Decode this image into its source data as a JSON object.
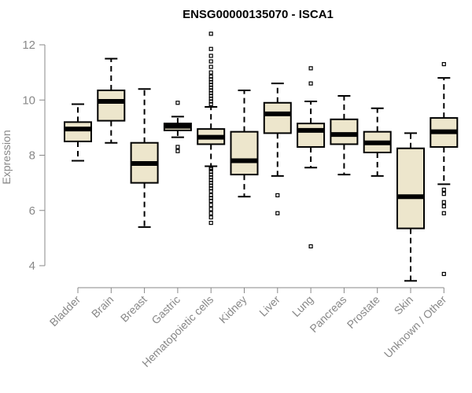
{
  "chart_data": {
    "type": "boxplot",
    "title": "ENSG00000135070 - ISCA1",
    "xlabel": "",
    "ylabel": "Expression",
    "ylim": [
      3.3,
      12.5
    ],
    "yticks": [
      4,
      6,
      8,
      10,
      12
    ],
    "categories": [
      "Bladder",
      "Brain",
      "Breast",
      "Gastric",
      "Hematopoietic cells",
      "Kidney",
      "Liver",
      "Lung",
      "Pancreas",
      "Prostate",
      "Skin",
      "Unknown / Other"
    ],
    "colors": {
      "box_fill": "#ede6cc",
      "stroke": "#000000",
      "axis": "#888888"
    },
    "boxes": [
      {
        "name": "Bladder",
        "whisker_low": 7.8,
        "q1": 8.5,
        "median": 8.95,
        "q3": 9.2,
        "whisker_high": 9.85,
        "outliers": []
      },
      {
        "name": "Brain",
        "whisker_low": 8.45,
        "q1": 9.25,
        "median": 9.95,
        "q3": 10.35,
        "whisker_high": 11.5,
        "outliers": []
      },
      {
        "name": "Breast",
        "whisker_low": 5.4,
        "q1": 7.0,
        "median": 7.7,
        "q3": 8.45,
        "whisker_high": 10.4,
        "outliers": []
      },
      {
        "name": "Gastric",
        "whisker_low": 8.65,
        "q1": 8.9,
        "median": 9.05,
        "q3": 9.15,
        "whisker_high": 9.4,
        "outliers": [
          8.15,
          8.3,
          9.9
        ]
      },
      {
        "name": "Hematopoietic cells",
        "whisker_low": 7.6,
        "q1": 8.4,
        "median": 8.65,
        "q3": 8.95,
        "whisker_high": 9.75,
        "outliers": [
          5.55,
          5.75,
          5.9,
          6.05,
          6.2,
          6.35,
          6.45,
          6.55,
          6.7,
          6.8,
          6.9,
          7.0,
          7.1,
          7.2,
          7.3,
          7.4,
          7.5,
          7.55,
          9.85,
          9.95,
          10.05,
          10.15,
          10.25,
          10.35,
          10.45,
          10.55,
          10.65,
          10.75,
          10.85,
          11.0,
          11.2,
          11.4,
          11.6,
          11.85,
          12.4
        ]
      },
      {
        "name": "Kidney",
        "whisker_low": 6.5,
        "q1": 7.3,
        "median": 7.8,
        "q3": 8.85,
        "whisker_high": 10.35,
        "outliers": []
      },
      {
        "name": "Liver",
        "whisker_low": 7.25,
        "q1": 8.8,
        "median": 9.5,
        "q3": 9.9,
        "whisker_high": 10.6,
        "outliers": [
          5.9,
          6.55
        ]
      },
      {
        "name": "Lung",
        "whisker_low": 7.55,
        "q1": 8.3,
        "median": 8.9,
        "q3": 9.15,
        "whisker_high": 9.95,
        "outliers": [
          4.7,
          10.6,
          11.15
        ]
      },
      {
        "name": "Pancreas",
        "whisker_low": 7.3,
        "q1": 8.4,
        "median": 8.75,
        "q3": 9.3,
        "whisker_high": 10.15,
        "outliers": []
      },
      {
        "name": "Prostate",
        "whisker_low": 7.25,
        "q1": 8.1,
        "median": 8.45,
        "q3": 8.85,
        "whisker_high": 9.7,
        "outliers": []
      },
      {
        "name": "Skin",
        "whisker_low": 3.45,
        "q1": 5.35,
        "median": 6.5,
        "q3": 8.25,
        "whisker_high": 8.8,
        "outliers": []
      },
      {
        "name": "Unknown / Other",
        "whisker_low": 6.95,
        "q1": 8.3,
        "median": 8.85,
        "q3": 9.35,
        "whisker_high": 10.8,
        "outliers": [
          3.7,
          5.9,
          6.15,
          6.3,
          6.6,
          6.75,
          11.3
        ]
      }
    ]
  }
}
